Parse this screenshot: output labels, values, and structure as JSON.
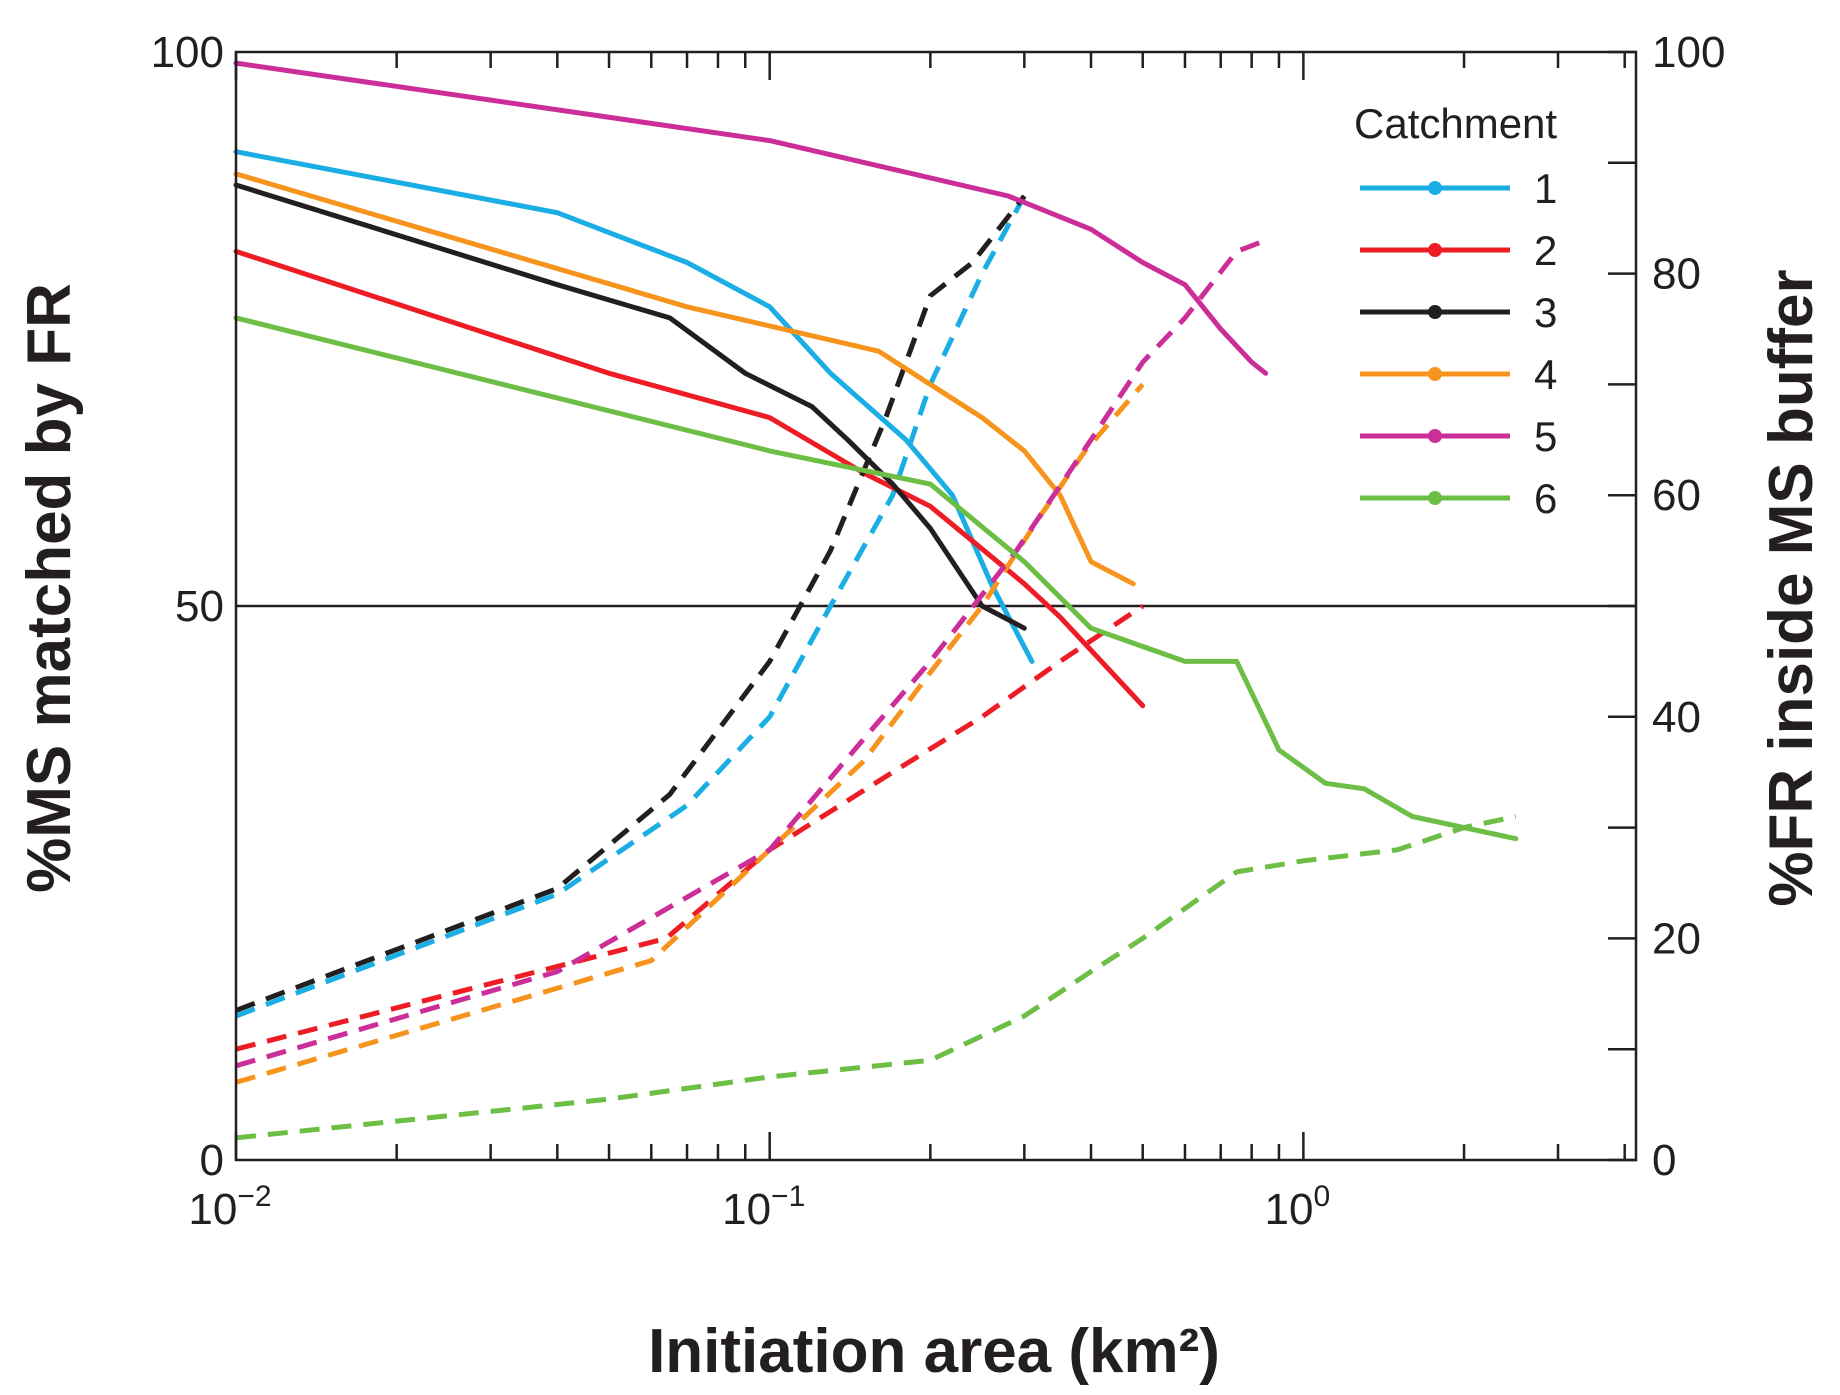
{
  "chart_data": {
    "type": "line",
    "xlabel": "Initiation area (km²)",
    "ylabel_left": "%MS matched by FR",
    "ylabel_right": "%FR inside MS buffer",
    "xscale": "log",
    "xlim": [
      0.01,
      4.2
    ],
    "ylim_left": [
      0,
      100
    ],
    "ylim_right": [
      0,
      100
    ],
    "x_major_ticks": [
      {
        "value": 0.01,
        "base": "10",
        "exp": "−2"
      },
      {
        "value": 0.1,
        "base": "10",
        "exp": "−1"
      },
      {
        "value": 1,
        "base": "10",
        "exp": "0"
      }
    ],
    "y_left_ticks": [
      {
        "value": 0,
        "label": "0"
      },
      {
        "value": 50,
        "label": "50"
      },
      {
        "value": 100,
        "label": "100"
      }
    ],
    "y_right_ticks": [
      {
        "value": 0,
        "label": "0"
      },
      {
        "value": 20,
        "label": "20"
      },
      {
        "value": 40,
        "label": "40"
      },
      {
        "value": 60,
        "label": "60"
      },
      {
        "value": 80,
        "label": "80"
      },
      {
        "value": 100,
        "label": "100"
      }
    ],
    "reference_line": 50,
    "legend": {
      "title": "Catchment",
      "placement": "top-right"
    },
    "series": [
      {
        "name": "1",
        "color": "#1aaee5",
        "ms_matched": [
          [
            0.01,
            91
          ],
          [
            0.04,
            85.5
          ],
          [
            0.07,
            81
          ],
          [
            0.1,
            77
          ],
          [
            0.13,
            71
          ],
          [
            0.18,
            65
          ],
          [
            0.22,
            60
          ],
          [
            0.26,
            52
          ],
          [
            0.31,
            45
          ]
        ],
        "fr_inside": [
          [
            0.01,
            13
          ],
          [
            0.04,
            24
          ],
          [
            0.07,
            32
          ],
          [
            0.1,
            40
          ],
          [
            0.13,
            50
          ],
          [
            0.17,
            60
          ],
          [
            0.2,
            70
          ],
          [
            0.25,
            80
          ],
          [
            0.3,
            87
          ]
        ]
      },
      {
        "name": "2",
        "color": "#ee1c25",
        "ms_matched": [
          [
            0.01,
            82
          ],
          [
            0.05,
            71
          ],
          [
            0.1,
            67
          ],
          [
            0.15,
            62
          ],
          [
            0.2,
            59
          ],
          [
            0.3,
            52
          ],
          [
            0.35,
            49
          ],
          [
            0.5,
            41
          ]
        ],
        "fr_inside": [
          [
            0.01,
            10
          ],
          [
            0.064,
            20
          ],
          [
            0.1,
            28
          ],
          [
            0.17,
            35
          ],
          [
            0.25,
            40
          ],
          [
            0.35,
            45
          ],
          [
            0.5,
            50
          ]
        ]
      },
      {
        "name": "3",
        "color": "#231f20",
        "ms_matched": [
          [
            0.01,
            88
          ],
          [
            0.04,
            79
          ],
          [
            0.065,
            76
          ],
          [
            0.09,
            71
          ],
          [
            0.12,
            68
          ],
          [
            0.14,
            65
          ],
          [
            0.17,
            61
          ],
          [
            0.2,
            57
          ],
          [
            0.25,
            50
          ],
          [
            0.3,
            48
          ]
        ],
        "fr_inside": [
          [
            0.01,
            13.5
          ],
          [
            0.04,
            24.5
          ],
          [
            0.065,
            33
          ],
          [
            0.1,
            45
          ],
          [
            0.13,
            55
          ],
          [
            0.165,
            67
          ],
          [
            0.2,
            78
          ],
          [
            0.24,
            81
          ],
          [
            0.3,
            87
          ]
        ]
      },
      {
        "name": "4",
        "color": "#f7941d",
        "ms_matched": [
          [
            0.01,
            89
          ],
          [
            0.07,
            77
          ],
          [
            0.16,
            73
          ],
          [
            0.2,
            70
          ],
          [
            0.25,
            67
          ],
          [
            0.3,
            64
          ],
          [
            0.35,
            60
          ],
          [
            0.4,
            54
          ],
          [
            0.48,
            52
          ]
        ],
        "fr_inside": [
          [
            0.01,
            7
          ],
          [
            0.06,
            18
          ],
          [
            0.1,
            28
          ],
          [
            0.15,
            36
          ],
          [
            0.2,
            44
          ],
          [
            0.25,
            50
          ],
          [
            0.32,
            58
          ],
          [
            0.39,
            64
          ],
          [
            0.5,
            70
          ]
        ]
      },
      {
        "name": "5",
        "color": "#cc2e99",
        "ms_matched": [
          [
            0.01,
            99
          ],
          [
            0.1,
            92
          ],
          [
            0.28,
            87
          ],
          [
            0.4,
            84
          ],
          [
            0.5,
            81
          ],
          [
            0.6,
            79
          ],
          [
            0.7,
            75
          ],
          [
            0.8,
            72
          ],
          [
            0.85,
            71
          ]
        ],
        "fr_inside": [
          [
            0.01,
            8.5
          ],
          [
            0.04,
            17
          ],
          [
            0.1,
            28
          ],
          [
            0.15,
            38
          ],
          [
            0.2,
            45
          ],
          [
            0.29,
            55
          ],
          [
            0.4,
            65
          ],
          [
            0.5,
            72
          ],
          [
            0.6,
            76
          ],
          [
            0.75,
            82
          ],
          [
            0.85,
            83
          ]
        ]
      },
      {
        "name": "6",
        "color": "#6cbe45",
        "ms_matched": [
          [
            0.01,
            76
          ],
          [
            0.1,
            64
          ],
          [
            0.2,
            61
          ],
          [
            0.3,
            54
          ],
          [
            0.4,
            48
          ],
          [
            0.6,
            45
          ],
          [
            0.75,
            45
          ],
          [
            0.9,
            37
          ],
          [
            1.1,
            34
          ],
          [
            1.3,
            33.5
          ],
          [
            1.6,
            31
          ],
          [
            2.5,
            29
          ]
        ],
        "fr_inside": [
          [
            0.01,
            2
          ],
          [
            0.05,
            5.5
          ],
          [
            0.1,
            7.5
          ],
          [
            0.2,
            9
          ],
          [
            0.3,
            13
          ],
          [
            0.4,
            17
          ],
          [
            0.5,
            20
          ],
          [
            0.75,
            26
          ],
          [
            1.0,
            27
          ],
          [
            1.5,
            28
          ],
          [
            2.0,
            30
          ],
          [
            2.5,
            31
          ]
        ]
      }
    ]
  }
}
